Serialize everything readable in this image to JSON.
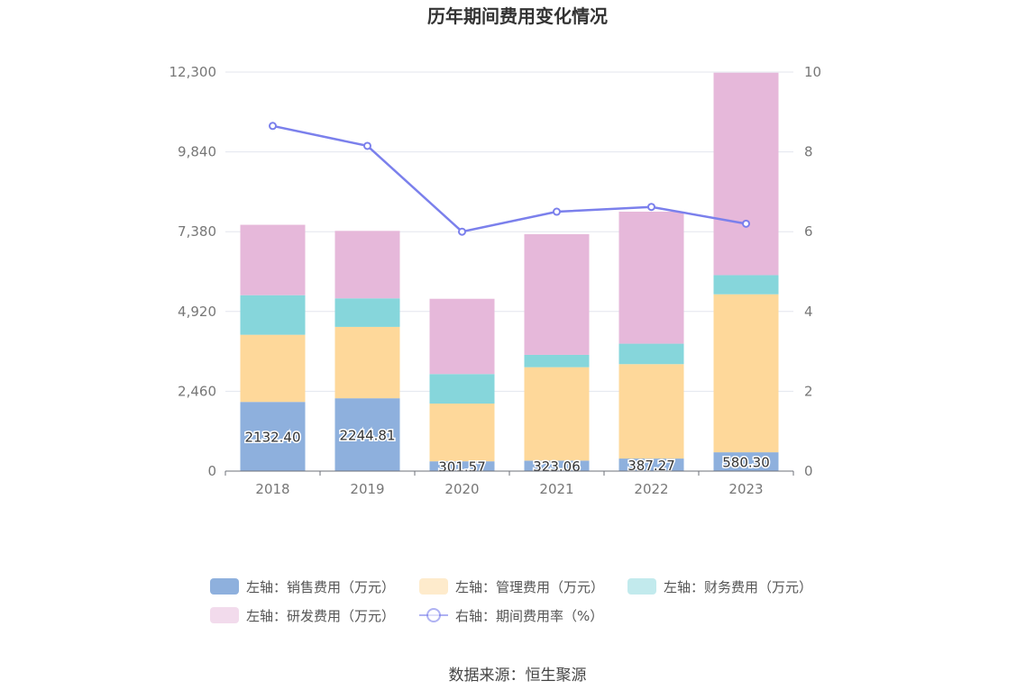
{
  "chart_data": {
    "type": "bar",
    "title": "历年期间费用变化情况",
    "categories": [
      "2018",
      "2019",
      "2020",
      "2021",
      "2022",
      "2023"
    ],
    "stacked": true,
    "left_axis": {
      "ylim": [
        0,
        12300
      ],
      "ticks": [
        "0",
        "2,460",
        "4,920",
        "7,380",
        "9,840",
        "12,300"
      ],
      "tick_values": [
        0,
        2460,
        4920,
        7380,
        9840,
        12300
      ]
    },
    "right_axis": {
      "ylim": [
        0,
        10
      ],
      "ticks": [
        "0",
        "2",
        "4",
        "6",
        "8",
        "10"
      ],
      "tick_values": [
        0,
        2,
        4,
        6,
        8,
        10
      ]
    },
    "series": [
      {
        "name": "左轴：销售费用（万元）",
        "axis": "left",
        "type": "bar",
        "color": "#8eb0dd",
        "values": [
          2132.4,
          2244.81,
          301.57,
          323.06,
          387.27,
          580.3
        ],
        "labels": [
          "2132.40",
          "2244.81",
          "301.57",
          "323.06",
          "387.27",
          "580.30"
        ]
      },
      {
        "name": "左轴：管理费用（万元）",
        "axis": "left",
        "type": "bar",
        "color": "#fed89a",
        "values": [
          2070,
          2200,
          1780,
          2880,
          2910,
          4870
        ]
      },
      {
        "name": "左轴：财务费用（万元）",
        "axis": "left",
        "type": "bar",
        "color": "#86d6db",
        "values": [
          1220,
          880,
          910,
          380,
          630,
          590
        ]
      },
      {
        "name": "左轴：研发费用（万元）",
        "axis": "left",
        "type": "bar",
        "color": "#e6b8da",
        "values": [
          2170,
          2080,
          2320,
          3720,
          4070,
          6240
        ]
      },
      {
        "name": "右轴：期间费用率（%）",
        "axis": "right",
        "type": "line",
        "color": "#7b80ec",
        "values": [
          8.65,
          8.15,
          6.0,
          6.5,
          6.62,
          6.2
        ]
      }
    ]
  },
  "footer": {
    "source": "数据来源：恒生聚源"
  }
}
